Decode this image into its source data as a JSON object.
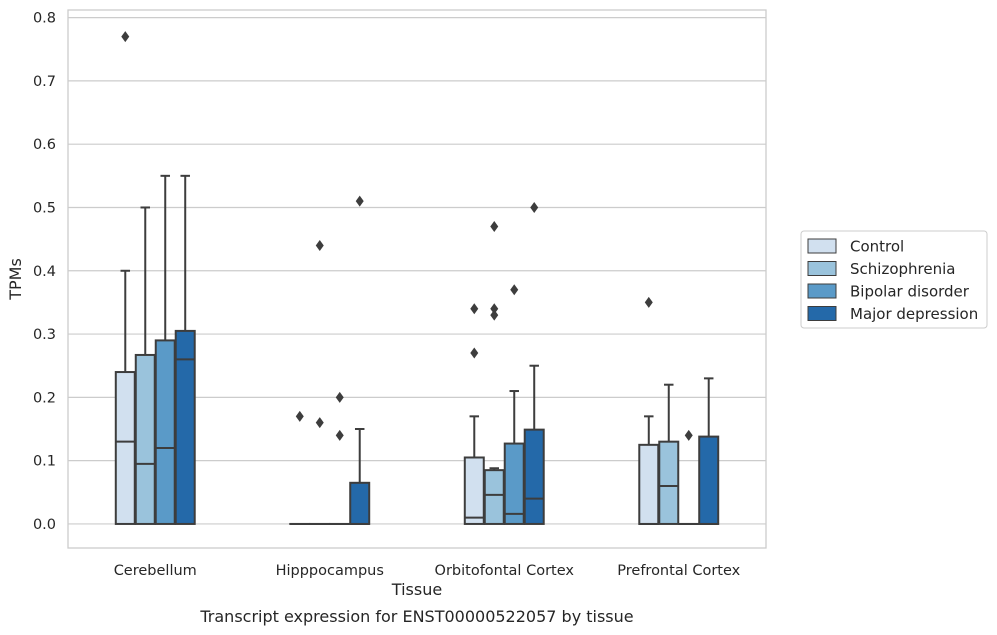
{
  "chart_data": {
    "type": "boxplot",
    "caption": "Transcript expression for ENST00000522057 by tissue",
    "xlabel": "Tissue",
    "ylabel": "TPMs",
    "ylim": [
      -0.038,
      0.812
    ],
    "yticks": [
      0.0,
      0.1,
      0.2,
      0.3,
      0.4,
      0.5,
      0.6,
      0.7,
      0.8
    ],
    "ytick_labels": [
      "0.0",
      "0.1",
      "0.2",
      "0.3",
      "0.4",
      "0.5",
      "0.6",
      "0.7",
      "0.8"
    ],
    "grid": "horizontal",
    "legend_position": "right",
    "categories": [
      "Cerebellum",
      "Hipppocampus",
      "Orbitofontal Cortex",
      "Prefrontal Cortex"
    ],
    "series": [
      {
        "name": "Control",
        "color": "#d1e0ef",
        "boxes": [
          {
            "q1": 0.0,
            "median": 0.13,
            "q3": 0.24,
            "whisker_low": 0.0,
            "whisker_high": 0.4,
            "outliers": [
              0.77
            ]
          },
          {
            "q1": 0.0,
            "median": 0.0,
            "q3": 0.0,
            "whisker_low": 0.0,
            "whisker_high": 0.0,
            "outliers": [
              0.17
            ]
          },
          {
            "q1": 0.0,
            "median": 0.01,
            "q3": 0.105,
            "whisker_low": 0.0,
            "whisker_high": 0.17,
            "outliers": [
              0.27,
              0.34
            ]
          },
          {
            "q1": 0.0,
            "median": 0.0,
            "q3": 0.125,
            "whisker_low": 0.0,
            "whisker_high": 0.17,
            "outliers": [
              0.35
            ]
          }
        ]
      },
      {
        "name": "Schizophrenia",
        "color": "#9ac3dc",
        "boxes": [
          {
            "q1": 0.0,
            "median": 0.095,
            "q3": 0.267,
            "whisker_low": 0.0,
            "whisker_high": 0.5,
            "outliers": []
          },
          {
            "q1": 0.0,
            "median": 0.0,
            "q3": 0.0,
            "whisker_low": 0.0,
            "whisker_high": 0.0,
            "outliers": [
              0.16,
              0.44
            ]
          },
          {
            "q1": 0.0,
            "median": 0.046,
            "q3": 0.085,
            "whisker_low": 0.0,
            "whisker_high": 0.088,
            "outliers": [
              0.33,
              0.34,
              0.47
            ]
          },
          {
            "q1": 0.0,
            "median": 0.06,
            "q3": 0.13,
            "whisker_low": 0.0,
            "whisker_high": 0.22,
            "outliers": []
          }
        ]
      },
      {
        "name": "Bipolar disorder",
        "color": "#5a9ac8",
        "boxes": [
          {
            "q1": 0.0,
            "median": 0.12,
            "q3": 0.29,
            "whisker_low": 0.0,
            "whisker_high": 0.55,
            "outliers": []
          },
          {
            "q1": 0.0,
            "median": 0.0,
            "q3": 0.0,
            "whisker_low": 0.0,
            "whisker_high": 0.0,
            "outliers": [
              0.14,
              0.2
            ]
          },
          {
            "q1": 0.0,
            "median": 0.016,
            "q3": 0.127,
            "whisker_low": 0.0,
            "whisker_high": 0.21,
            "outliers": [
              0.37
            ]
          },
          {
            "q1": 0.0,
            "median": 0.0,
            "q3": 0.0,
            "whisker_low": 0.0,
            "whisker_high": 0.0,
            "outliers": [
              0.14
            ]
          }
        ]
      },
      {
        "name": "Major depression",
        "color": "#2469a9",
        "boxes": [
          {
            "q1": 0.0,
            "median": 0.26,
            "q3": 0.305,
            "whisker_low": 0.0,
            "whisker_high": 0.55,
            "outliers": []
          },
          {
            "q1": 0.0,
            "median": 0.0,
            "q3": 0.065,
            "whisker_low": 0.0,
            "whisker_high": 0.15,
            "outliers": [
              0.51
            ]
          },
          {
            "q1": 0.0,
            "median": 0.04,
            "q3": 0.149,
            "whisker_low": 0.0,
            "whisker_high": 0.25,
            "outliers": [
              0.5
            ]
          },
          {
            "q1": 0.0,
            "median": 0.0,
            "q3": 0.138,
            "whisker_low": 0.0,
            "whisker_high": 0.23,
            "outliers": []
          }
        ]
      }
    ]
  }
}
